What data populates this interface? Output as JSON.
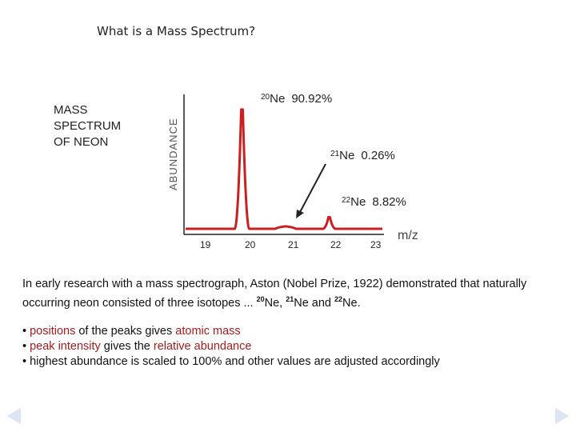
{
  "slide": {
    "title": "What is a Mass Spectrum?",
    "side_label": [
      "MASS",
      "SPECTRUM",
      "OF NEON"
    ]
  },
  "chart_data": {
    "type": "line",
    "ylabel": "ABUNDANCE",
    "xlabel": "m/z",
    "x_ticks": [
      "19",
      "20",
      "21",
      "22",
      "23"
    ],
    "peaks": [
      {
        "isotope_mass": "20",
        "isotope": "Ne",
        "percent": "90.92%",
        "x": 20,
        "y": 90.92
      },
      {
        "isotope_mass": "21",
        "isotope": "Ne",
        "percent": "0.26%",
        "x": 21,
        "y": 0.26
      },
      {
        "isotope_mass": "22",
        "isotope": "Ne",
        "percent": "8.82%",
        "x": 22,
        "y": 8.82
      }
    ],
    "line_color": "#cc1f1f"
  },
  "text": {
    "para_part1": "In early research with a mass spectrograph, Aston (Nobel Prize, 1922) demonstrated that naturally occurring neon consisted of three isotopes ... ",
    "iso1_mass": "20",
    "iso1_rest": "Ne,  ",
    "iso2_mass": "21",
    "iso2_rest": "Ne and  ",
    "iso3_mass": "22",
    "iso3_rest": "Ne.",
    "b1_pre": "• ",
    "b1_red1": "positions",
    "b1_mid": " of the peaks gives ",
    "b1_red2": "atomic mass",
    "b2_pre": "• ",
    "b2_red1": "peak intensity",
    "b2_mid": " gives the ",
    "b2_red2": "relative abundance",
    "b3": "• highest abundance is scaled to 100% and other values are adjusted accordingly"
  },
  "nav": {
    "prev_icon": "triangle-left-icon",
    "next_icon": "triangle-right-icon",
    "color": "#dbe6f2"
  }
}
